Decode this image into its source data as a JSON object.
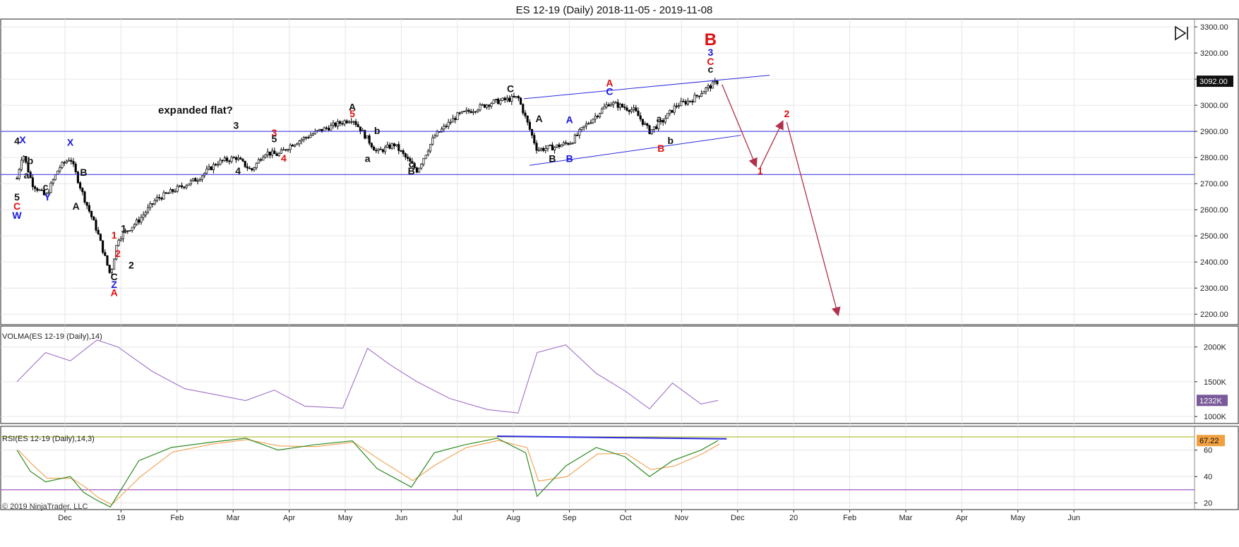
{
  "window": {
    "title": "ES 12-19 (Daily)  2018-11-05 - 2019-11-08"
  },
  "copyright": "© 2019 NinjaTrader, LLC",
  "annotation_text": "expanded flat?",
  "colors": {
    "background": "#ffffff",
    "grid": "#e6e6e6",
    "price_candle": "#000000",
    "volma_line": "#a070c8",
    "rsi_green": "#2e8b22",
    "rsi_orange": "#f0a050",
    "rsi_upper_band": "#b8c040",
    "rsi_lower_band": "#a050c0",
    "blue_lines": "#2a2ae0",
    "red_arrows": "#b0304a",
    "label_red": "#e01010",
    "label_blue": "#1a1ad8",
    "label_black": "#111111"
  },
  "chart_data": [
    {
      "type": "candlestick",
      "name": "price",
      "x_range": [
        "2018-11-05",
        "2020-07-15"
      ],
      "x_ticks": [
        "Dec",
        "19",
        "Feb",
        "Mar",
        "Apr",
        "May",
        "Jun",
        "Jul",
        "Aug",
        "Sep",
        "Oct",
        "Nov",
        "Dec",
        "20",
        "Feb",
        "Mar",
        "Apr",
        "May",
        "Jun"
      ],
      "y_ticks": [
        "3300.00",
        "3200.00",
        "3100.00",
        "3000.00",
        "2900.00",
        "2800.00",
        "2700.00",
        "2600.00",
        "2500.00",
        "2400.00",
        "2300.00",
        "2200.00"
      ],
      "ylim": [
        2160,
        3330
      ],
      "last_price_label": "3092.00",
      "x_dates": [
        "2018-11-05",
        "2018-11-08",
        "2018-11-13",
        "2018-11-20",
        "2018-11-27",
        "2018-12-03",
        "2018-12-10",
        "2018-12-17",
        "2018-12-24",
        "2018-12-28",
        "2019-01-08",
        "2019-01-17",
        "2019-01-28",
        "2019-02-08",
        "2019-02-18",
        "2019-02-28",
        "2019-03-08",
        "2019-03-15",
        "2019-03-22",
        "2019-03-29",
        "2019-04-12",
        "2019-04-30",
        "2019-05-13",
        "2019-05-22",
        "2019-06-03",
        "2019-06-12",
        "2019-06-24",
        "2019-07-12",
        "2019-07-26",
        "2019-08-05",
        "2019-08-14",
        "2019-08-23",
        "2019-08-30",
        "2019-09-12",
        "2019-09-25",
        "2019-10-03",
        "2019-10-10",
        "2019-10-17",
        "2019-10-25",
        "2019-11-01",
        "2019-11-08"
      ],
      "close": [
        2720,
        2820,
        2700,
        2650,
        2760,
        2800,
        2650,
        2520,
        2350,
        2490,
        2560,
        2640,
        2680,
        2720,
        2780,
        2800,
        2750,
        2820,
        2810,
        2850,
        2900,
        2950,
        2820,
        2850,
        2750,
        2880,
        2960,
        3010,
        3030,
        2830,
        2840,
        2860,
        2920,
        3010,
        2980,
        2900,
        2940,
        3000,
        3020,
        3060,
        3092
      ],
      "wave_labels": [
        {
          "text": "4",
          "color": "black"
        },
        {
          "text": "X",
          "color": "blue"
        },
        {
          "text": "b",
          "color": "black"
        },
        {
          "text": "a",
          "color": "black"
        },
        {
          "text": "c",
          "color": "black"
        },
        {
          "text": "Y",
          "color": "blue"
        },
        {
          "text": "5",
          "color": "black"
        },
        {
          "text": "C",
          "color": "red"
        },
        {
          "text": "W",
          "color": "blue"
        },
        {
          "text": "X",
          "color": "blue"
        },
        {
          "text": "B",
          "color": "black"
        },
        {
          "text": "A",
          "color": "black"
        },
        {
          "text": "1",
          "color": "red"
        },
        {
          "text": "1",
          "color": "black"
        },
        {
          "text": "2",
          "color": "red"
        },
        {
          "text": "2",
          "color": "black"
        },
        {
          "text": "C",
          "color": "black"
        },
        {
          "text": "Z",
          "color": "blue"
        },
        {
          "text": "A",
          "color": "red"
        },
        {
          "text": "3",
          "color": "black"
        },
        {
          "text": "4",
          "color": "black"
        },
        {
          "text": "3",
          "color": "red"
        },
        {
          "text": "5",
          "color": "black"
        },
        {
          "text": "4",
          "color": "red"
        },
        {
          "text": "A",
          "color": "black"
        },
        {
          "text": "5",
          "color": "red"
        },
        {
          "text": "b",
          "color": "black"
        },
        {
          "text": "a",
          "color": "black"
        },
        {
          "text": "c",
          "color": "black"
        },
        {
          "text": "B",
          "color": "black"
        },
        {
          "text": "C",
          "color": "black"
        },
        {
          "text": "A",
          "color": "black"
        },
        {
          "text": "B",
          "color": "black"
        },
        {
          "text": "A",
          "color": "blue"
        },
        {
          "text": "B",
          "color": "blue"
        },
        {
          "text": "A",
          "color": "red"
        },
        {
          "text": "C",
          "color": "blue"
        },
        {
          "text": "a",
          "color": "black"
        },
        {
          "text": "b",
          "color": "black"
        },
        {
          "text": "B",
          "color": "red"
        },
        {
          "text": "B",
          "color": "red"
        },
        {
          "text": "3",
          "color": "blue"
        },
        {
          "text": "C",
          "color": "red"
        },
        {
          "text": "c",
          "color": "black"
        },
        {
          "text": "1",
          "color": "red"
        },
        {
          "text": "2",
          "color": "red"
        }
      ]
    },
    {
      "type": "line",
      "name": "VOLMA(ES 12-19 (Daily),14)",
      "y_ticks": [
        "2000K",
        "1500K",
        "1000K"
      ],
      "ylim": [
        900,
        2300
      ],
      "last_value_label": "1232K",
      "x_dates": [
        "2018-11-05",
        "2018-11-20",
        "2018-12-03",
        "2018-12-17",
        "2018-12-28",
        "2019-01-15",
        "2019-02-01",
        "2019-02-20",
        "2019-03-05",
        "2019-03-20",
        "2019-04-05",
        "2019-04-25",
        "2019-05-08",
        "2019-05-20",
        "2019-06-03",
        "2019-06-20",
        "2019-07-10",
        "2019-07-26",
        "2019-08-05",
        "2019-08-20",
        "2019-09-05",
        "2019-09-20",
        "2019-10-03",
        "2019-10-15",
        "2019-10-30",
        "2019-11-08"
      ],
      "values": [
        1500,
        1920,
        1800,
        2100,
        2000,
        1650,
        1400,
        1300,
        1230,
        1380,
        1150,
        1120,
        1980,
        1740,
        1500,
        1260,
        1100,
        1050,
        1920,
        2030,
        1620,
        1370,
        1110,
        1480,
        1180,
        1232
      ]
    },
    {
      "type": "line",
      "name": "RSI(ES 12-19 (Daily),14,3)",
      "y_ticks": [
        "60",
        "40",
        "20"
      ],
      "ylim": [
        15,
        78
      ],
      "last_value_label": "67.22",
      "upper_band": 70,
      "lower_band": 30,
      "x_dates": [
        "2018-11-05",
        "2018-11-12",
        "2018-11-20",
        "2018-12-03",
        "2018-12-10",
        "2018-12-17",
        "2018-12-24",
        "2019-01-08",
        "2019-01-25",
        "2019-02-15",
        "2019-03-05",
        "2019-03-22",
        "2019-04-10",
        "2019-04-30",
        "2019-05-13",
        "2019-05-31",
        "2019-06-12",
        "2019-06-28",
        "2019-07-15",
        "2019-07-30",
        "2019-08-05",
        "2019-08-20",
        "2019-09-05",
        "2019-09-20",
        "2019-10-03",
        "2019-10-15",
        "2019-10-30",
        "2019-11-08"
      ],
      "values": [
        60,
        44,
        36,
        40,
        28,
        22,
        17,
        52,
        62,
        66,
        69,
        60,
        64,
        67,
        46,
        32,
        58,
        64,
        69,
        58,
        25,
        48,
        62,
        55,
        40,
        52,
        60,
        67.22
      ]
    }
  ]
}
